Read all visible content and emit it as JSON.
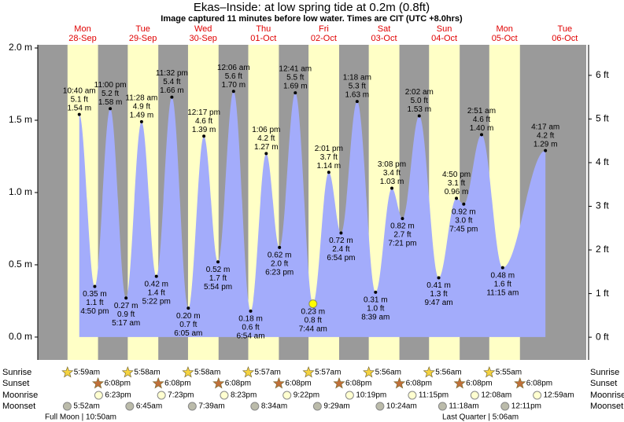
{
  "chart_data": {
    "type": "tide",
    "title": "Ekas–Inside: at low  spring tide at 0.2m (0.8ft)",
    "subtitle": "Image captured 11 minutes before low water. Times are CIT (UTC +8.0hrs)",
    "ylim": [
      -0.158,
      2.022
    ],
    "yticks": [
      {
        "value": 0,
        "label": "0.0 m"
      },
      {
        "value": 0.5,
        "label": "0.5 m"
      },
      {
        "value": 1,
        "label": "1.0 m"
      },
      {
        "value": 1.5,
        "label": "1.5 m"
      },
      {
        "value": 2,
        "label": "2.0 m"
      }
    ],
    "y2lim": [
      -0.52,
      6.7
    ],
    "y2ticks": [
      {
        "value": 0,
        "label": "0 ft"
      },
      {
        "value": 1,
        "label": "1 ft"
      },
      {
        "value": 2,
        "label": "2 ft"
      },
      {
        "value": 3,
        "label": "3 ft"
      },
      {
        "value": 4,
        "label": "4 ft"
      },
      {
        "value": 5,
        "label": "5 ft"
      },
      {
        "value": 6,
        "label": "6 ft"
      }
    ],
    "tide_color": "#a3acfb",
    "day_color": "#ffffc6",
    "night_color": "#9a9a9a",
    "row_labels": [
      "Sunrise",
      "Sunset",
      "Moonrise",
      "Moonset"
    ],
    "moon_phases": [
      "Full Moon | 10:50am",
      "Last Quarter | 5:06am"
    ],
    "days": [
      {
        "weekday": "Mon",
        "date": "28-Sep",
        "sunrise": "5:59am",
        "sunset": "6:08pm",
        "moonrise": "6:23pm",
        "moonset": "5:52am",
        "tides": [
          {
            "time": "10:40 am",
            "m": 1.54,
            "m_label": "1.54 m",
            "ft_label": "5.1 ft"
          },
          {
            "time": "4:50 pm",
            "m": 0.35,
            "m_label": "0.35 m",
            "ft_label": "1.1 ft"
          },
          {
            "time": "11:00 pm",
            "m": 1.58,
            "m_label": "1.58 m",
            "ft_label": "5.2 ft"
          }
        ]
      },
      {
        "weekday": "Tue",
        "date": "29-Sep",
        "sunrise": "5:58am",
        "sunset": "6:08pm",
        "moonrise": "7:23pm",
        "moonset": "6:45am",
        "tides": [
          {
            "time": "5:17 am",
            "m": 0.27,
            "m_label": "0.27 m",
            "ft_label": "0.9 ft"
          },
          {
            "time": "11:28 am",
            "m": 1.49,
            "m_label": "1.49 m",
            "ft_label": "4.9 ft"
          },
          {
            "time": "5:22 pm",
            "m": 0.42,
            "m_label": "0.42 m",
            "ft_label": "1.4 ft"
          },
          {
            "time": "11:32 pm",
            "m": 1.66,
            "m_label": "1.66 m",
            "ft_label": "5.4 ft"
          }
        ]
      },
      {
        "weekday": "Wed",
        "date": "30-Sep",
        "sunrise": "5:58am",
        "sunset": "6:08pm",
        "moonrise": "8:23pm",
        "moonset": "7:39am",
        "tides": [
          {
            "time": "6:05 am",
            "m": 0.2,
            "m_label": "0.20 m",
            "ft_label": "0.7 ft"
          },
          {
            "time": "12:17 pm",
            "m": 1.39,
            "m_label": "1.39 m",
            "ft_label": "4.6 ft"
          },
          {
            "time": "5:54 pm",
            "m": 0.52,
            "m_label": "0.52 m",
            "ft_label": "1.7 ft"
          }
        ]
      },
      {
        "weekday": "Thu",
        "date": "01-Oct",
        "sunrise": "5:57am",
        "sunset": "6:08pm",
        "moonrise": "9:22pm",
        "moonset": "8:34am",
        "tides": [
          {
            "time": "12:06 am",
            "m": 1.7,
            "m_label": "1.70 m",
            "ft_label": "5.6 ft"
          },
          {
            "time": "6:54 am",
            "m": 0.18,
            "m_label": "0.18 m",
            "ft_label": "0.6 ft"
          },
          {
            "time": "1:06 pm",
            "m": 1.27,
            "m_label": "1.27 m",
            "ft_label": "4.2 ft"
          },
          {
            "time": "6:23 pm",
            "m": 0.62,
            "m_label": "0.62 m",
            "ft_label": "2.0 ft"
          }
        ]
      },
      {
        "weekday": "Fri",
        "date": "02-Oct",
        "sunrise": "5:57am",
        "sunset": "6:08pm",
        "moonrise": "10:19pm",
        "moonset": "9:29am",
        "tides": [
          {
            "time": "12:41 am",
            "m": 1.69,
            "m_label": "1.69 m",
            "ft_label": "5.5 ft"
          },
          {
            "time": "7:44 am",
            "m": 0.23,
            "m_label": "0.23 m",
            "ft_label": "0.8 ft",
            "color": "#ffff00"
          },
          {
            "time": "2:01 pm",
            "m": 1.14,
            "m_label": "1.14 m",
            "ft_label": "3.7 ft"
          },
          {
            "time": "6:54 pm",
            "m": 0.72,
            "m_label": "0.72 m",
            "ft_label": "2.4 ft"
          }
        ]
      },
      {
        "weekday": "Sat",
        "date": "03-Oct",
        "sunrise": "5:56am",
        "sunset": "6:08pm",
        "moonrise": "11:15pm",
        "moonset": "10:24am",
        "tides": [
          {
            "time": "1:18 am",
            "m": 1.63,
            "m_label": "1.63 m",
            "ft_label": "5.3 ft"
          },
          {
            "time": "8:39 am",
            "m": 0.31,
            "m_label": "0.31 m",
            "ft_label": "1.0 ft"
          },
          {
            "time": "3:08 pm",
            "m": 1.03,
            "m_label": "1.03 m",
            "ft_label": "3.4 ft"
          },
          {
            "time": "7:21 pm",
            "m": 0.82,
            "m_label": "0.82 m",
            "ft_label": "2.7 ft"
          }
        ]
      },
      {
        "weekday": "Sun",
        "date": "04-Oct",
        "sunrise": "5:56am",
        "sunset": "6:08pm",
        "moonset": "11:18am",
        "tides": [
          {
            "time": "2:02 am",
            "m": 1.53,
            "m_label": "1.53 m",
            "ft_label": "5.0 ft"
          },
          {
            "time": "9:47 am",
            "m": 0.41,
            "m_label": "0.41 m",
            "ft_label": "1.3 ft"
          },
          {
            "time": "4:50 pm",
            "m": 0.96,
            "m_label": "0.96 m",
            "ft_label": "3.1 ft"
          },
          {
            "time": "7:45 pm",
            "m": 0.92,
            "m_label": "0.92 m",
            "ft_label": "3.0 ft"
          }
        ]
      },
      {
        "weekday": "Mon",
        "date": "05-Oct",
        "sunrise": "5:55am",
        "sunset": "6:08pm",
        "moonrise": "12:08am",
        "moonset": "12:11pm",
        "tides": [
          {
            "time": "2:51 am",
            "m": 1.4,
            "m_label": "1.40 m",
            "ft_label": "4.6 ft"
          },
          {
            "time": "11:15 am",
            "m": 0.48,
            "m_label": "0.48 m",
            "ft_label": "1.6 ft"
          }
        ]
      },
      {
        "weekday": "Tue",
        "date": "06-Oct",
        "moonrise": "12:59am",
        "tides": [
          {
            "time": "4:17 am",
            "m": 1.29,
            "m_label": "1.29 m",
            "ft_label": "4.2 ft"
          }
        ]
      }
    ]
  }
}
